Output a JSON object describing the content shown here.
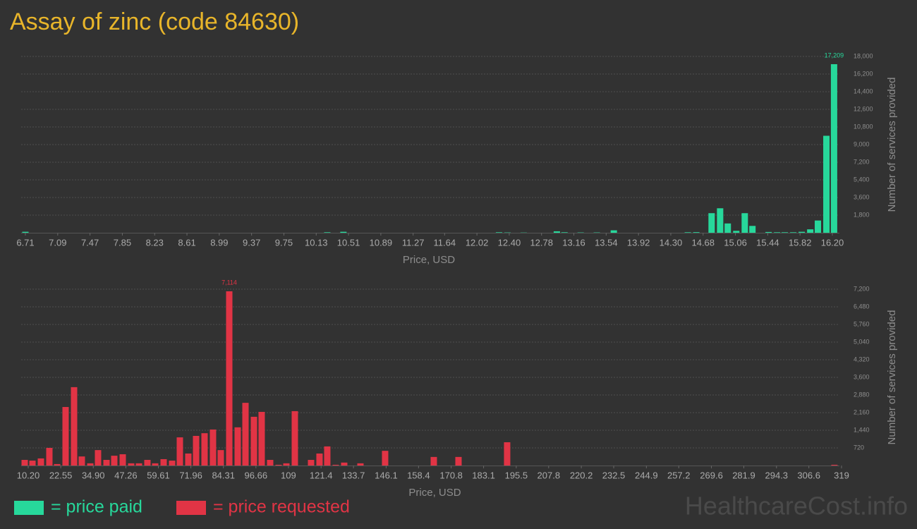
{
  "chart_data": [
    {
      "type": "bar",
      "title": "Assay of zinc (code 84630)",
      "x": [
        6.71,
        10.26,
        10.45,
        12.28,
        12.38,
        12.57,
        12.96,
        13.05,
        13.24,
        13.43,
        13.63,
        14.5,
        14.6,
        14.78,
        14.88,
        14.97,
        15.07,
        15.17,
        15.26,
        15.45,
        15.55,
        15.64,
        15.74,
        15.84,
        15.94,
        16.03,
        16.13,
        16.22
      ],
      "series": [
        {
          "name": "= price paid",
          "color": "#27d89b",
          "values": [
            100,
            50,
            100,
            50,
            30,
            20,
            150,
            50,
            30,
            30,
            250,
            50,
            60,
            2000,
            2500,
            950,
            200,
            2000,
            700,
            80,
            50,
            50,
            50,
            100,
            350,
            1250,
            9900,
            17209
          ],
          "value_labels": [
            null,
            null,
            null,
            null,
            null,
            null,
            null,
            null,
            null,
            null,
            null,
            null,
            null,
            null,
            null,
            null,
            null,
            null,
            null,
            null,
            null,
            null,
            null,
            null,
            null,
            null,
            null,
            "17,209"
          ]
        }
      ],
      "xlabel": "Price, USD",
      "ylabel": "Number of services provided",
      "xlim": [
        6.71,
        16.2
      ],
      "xticks": [
        6.71,
        7.09,
        7.47,
        7.85,
        8.23,
        8.61,
        8.99,
        9.37,
        9.75,
        10.13,
        10.51,
        10.89,
        11.27,
        11.64,
        12.02,
        {
          "value": 12.4,
          "label": "12.40"
        },
        12.78,
        13.16,
        13.54,
        13.92,
        {
          "value": 14.3,
          "label": "14.30"
        },
        14.68,
        15.06,
        15.44,
        15.82,
        {
          "value": 16.2,
          "label": "16.20"
        }
      ],
      "ylim": [
        0,
        18000
      ],
      "yticks": [
        {
          "value": 1800,
          "label": "1,800"
        },
        {
          "value": 3600,
          "label": "3,600"
        },
        {
          "value": 5400,
          "label": "5,400"
        },
        {
          "value": 7200,
          "label": "7,200"
        },
        {
          "value": 9000,
          "label": "9,000"
        },
        {
          "value": 10800,
          "label": "10,800"
        },
        {
          "value": 12600,
          "label": "12,600"
        },
        {
          "value": 14400,
          "label": "14,400"
        },
        {
          "value": 16200,
          "label": "16,200"
        },
        {
          "value": 18000,
          "label": "18,000"
        }
      ],
      "grid": true
    },
    {
      "type": "bar",
      "x": [
        8.86,
        11.81,
        15.02,
        18.23,
        21.18,
        24.39,
        27.61,
        30.55,
        33.77,
        36.71,
        39.93,
        42.87,
        46.09,
        49.3,
        52.25,
        55.46,
        58.41,
        61.62,
        64.83,
        67.78,
        70.99,
        73.94,
        77.15,
        80.36,
        83.31,
        86.53,
        89.74,
        92.69,
        95.9,
        98.84,
        102.06,
        105.27,
        108.22,
        111.43,
        117.59,
        120.8,
        123.75,
        126.96,
        130.18,
        136.34,
        145.71,
        164.19,
        173.57,
        192.04,
        316.3
      ],
      "series": [
        {
          "name": "= price requested",
          "color": "#e13445",
          "values": [
            230,
            200,
            290,
            720,
            60,
            2390,
            3200,
            370,
            90,
            630,
            230,
            400,
            460,
            90,
            90,
            230,
            90,
            260,
            200,
            1150,
            490,
            1210,
            1320,
            1470,
            630,
            7114,
            1560,
            2560,
            1990,
            2190,
            230,
            30,
            90,
            2220,
            230,
            490,
            780,
            30,
            120,
            90,
            600,
            350,
            350,
            950,
            30
          ],
          "value_labels": [
            null,
            null,
            null,
            null,
            null,
            null,
            null,
            null,
            null,
            null,
            null,
            null,
            null,
            null,
            null,
            null,
            null,
            null,
            null,
            null,
            null,
            null,
            null,
            null,
            null,
            "7,114",
            null,
            null,
            null,
            null,
            null,
            null,
            null,
            null,
            null,
            null,
            null,
            null,
            null,
            null,
            null,
            null,
            null,
            null,
            null
          ]
        }
      ],
      "xlabel": "Price, USD",
      "ylabel": "Number of services provided",
      "xlim": [
        10.2,
        319
      ],
      "xticks": [
        {
          "value": 10.2,
          "label": "10.20"
        },
        22.55,
        {
          "value": 34.9,
          "label": "34.90"
        },
        47.26,
        59.61,
        71.96,
        84.31,
        96.66,
        109,
        121.4,
        133.7,
        146.1,
        158.4,
        170.8,
        183.1,
        195.5,
        207.8,
        220.2,
        232.5,
        244.9,
        257.2,
        269.6,
        281.9,
        294.3,
        306.6,
        319
      ],
      "ylim": [
        0,
        7200
      ],
      "yticks": [
        720,
        {
          "value": 1440,
          "label": "1,440"
        },
        {
          "value": 2160,
          "label": "2,160"
        },
        {
          "value": 2880,
          "label": "2,880"
        },
        {
          "value": 3600,
          "label": "3,600"
        },
        {
          "value": 4320,
          "label": "4,320"
        },
        {
          "value": 5040,
          "label": "5,040"
        },
        {
          "value": 5760,
          "label": "5,760"
        },
        {
          "value": 6480,
          "label": "6,480"
        },
        {
          "value": 7200,
          "label": "7,200"
        }
      ],
      "grid": true
    }
  ],
  "watermark": "HealthcareCost.info"
}
